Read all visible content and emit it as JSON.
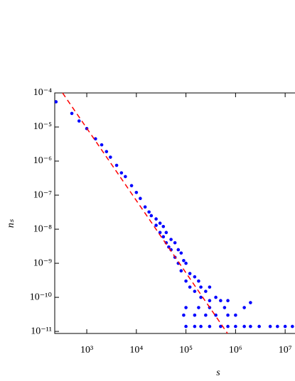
{
  "chart_data": {
    "type": "scatter",
    "x_label": "s",
    "y_label": "nₛ",
    "log_x": true,
    "log_y": true,
    "xlim": [
      226,
      15800000
    ],
    "ylim": [
      8.7e-12,
      0.0001
    ],
    "xticks": [
      {
        "value": 1000,
        "label": "10³"
      },
      {
        "value": 10000,
        "label": "10⁴"
      },
      {
        "value": 100000,
        "label": "10⁵"
      },
      {
        "value": 1000000,
        "label": "10⁶"
      },
      {
        "value": 10000000,
        "label": "10⁷"
      }
    ],
    "yticks": [
      {
        "value": 0.0001,
        "label": "10⁻⁴"
      },
      {
        "value": 1e-05,
        "label": "10⁻⁵"
      },
      {
        "value": 1e-06,
        "label": "10⁻⁶"
      },
      {
        "value": 1e-07,
        "label": "10⁻⁷"
      },
      {
        "value": 1e-08,
        "label": "10⁻⁸"
      },
      {
        "value": 1e-09,
        "label": "10⁻⁹"
      },
      {
        "value": 1e-10,
        "label": "10⁻¹⁰"
      },
      {
        "value": 1e-11,
        "label": "10⁻¹¹"
      }
    ],
    "color": "#0000ff",
    "x": [
      240,
      500,
      700,
      1000,
      1500,
      2000,
      2500,
      3000,
      4000,
      5000,
      6000,
      8000,
      10000,
      12000,
      15000,
      18000,
      20000,
      25000,
      25000,
      30000,
      30000,
      35000,
      35000,
      40000,
      40000,
      45000,
      50000,
      50000,
      60000,
      60000,
      70000,
      70000,
      80000,
      80000,
      90000,
      100000,
      100000,
      120000,
      120000,
      150000,
      150000,
      180000,
      200000,
      200000,
      250000,
      300000,
      300000,
      400000,
      500000,
      700000,
      2000000,
      100000,
      150000,
      200000,
      300000,
      500000,
      700000,
      1000000,
      1500000,
      2000000,
      3000000,
      5000000,
      7000000,
      10000000,
      14000000,
      90000,
      150000,
      250000,
      400000,
      700000,
      1000000,
      100000,
      180000,
      300000,
      600000,
      1500000
    ],
    "values": [
      5.5e-05,
      2.5e-05,
      1.5e-05,
      9e-06,
      4.5e-06,
      3e-06,
      1.9e-06,
      1.3e-06,
      7.5e-07,
      4.5e-07,
      3.5e-07,
      1.9e-07,
      1.2e-07,
      8e-08,
      4.5e-08,
      3.2e-08,
      2.5e-08,
      1.3e-08,
      2e-08,
      8e-09,
      1.5e-08,
      6e-09,
      1.2e-08,
      4e-09,
      8e-09,
      3e-09,
      2.5e-09,
      5e-09,
      1.5e-09,
      4e-09,
      1e-09,
      2.5e-09,
      6e-10,
      2e-09,
      1.2e-09,
      3e-10,
      1e-09,
      5e-10,
      2e-10,
      1.5e-10,
      4e-10,
      3e-10,
      1e-10,
      2e-10,
      1.5e-10,
      8e-11,
      2e-10,
      1e-10,
      8e-11,
      8e-11,
      7e-11,
      1.4e-11,
      1.4e-11,
      1.4e-11,
      1.4e-11,
      1.4e-11,
      1.4e-11,
      1.4e-11,
      1.4e-11,
      1.4e-11,
      1.4e-11,
      1.4e-11,
      1.4e-11,
      1.4e-11,
      1.4e-11,
      3e-11,
      3e-11,
      3e-11,
      3e-11,
      3e-11,
      3e-11,
      5e-11,
      5e-11,
      5e-11,
      5e-11,
      5e-11
    ],
    "fit": {
      "x": [
        325,
        690000
      ],
      "values": [
        0.0001,
        8.7e-12
      ],
      "color": "#ff0000",
      "dashed": true
    }
  }
}
